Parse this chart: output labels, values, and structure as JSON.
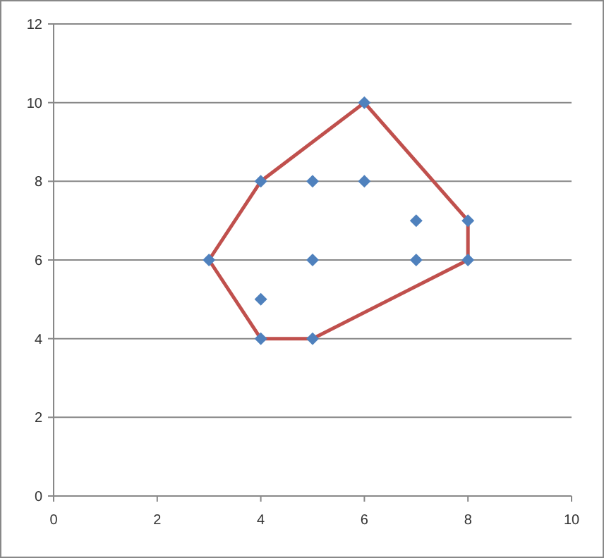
{
  "chart_data": {
    "type": "scatter",
    "xlim": [
      0,
      10
    ],
    "xticks": [
      0,
      2,
      4,
      6,
      8,
      10
    ],
    "ylim": [
      0,
      12
    ],
    "yticks": [
      0,
      2,
      4,
      6,
      8,
      10,
      12
    ],
    "grid": "y",
    "series": [
      {
        "color": "#4f81bd",
        "marker": "diamond",
        "x": [
          3,
          4,
          4,
          4,
          5,
          5,
          5,
          6,
          6,
          7,
          7,
          8,
          8
        ],
        "values": [
          6,
          8,
          5,
          4,
          8,
          6,
          4,
          8,
          10,
          7,
          6,
          7,
          6
        ]
      },
      {
        "type": "line",
        "color": "#c0504d",
        "marker": "none",
        "line_style": "solid",
        "x": [
          3,
          4,
          6,
          8,
          8
        ],
        "values": [
          6,
          8,
          10,
          7,
          6
        ]
      },
      {
        "type": "line",
        "color": "#c0504d",
        "marker": "none",
        "line_style": "solid",
        "x": [
          3,
          4,
          5,
          8
        ],
        "values": [
          6,
          4,
          4,
          6
        ]
      }
    ]
  }
}
